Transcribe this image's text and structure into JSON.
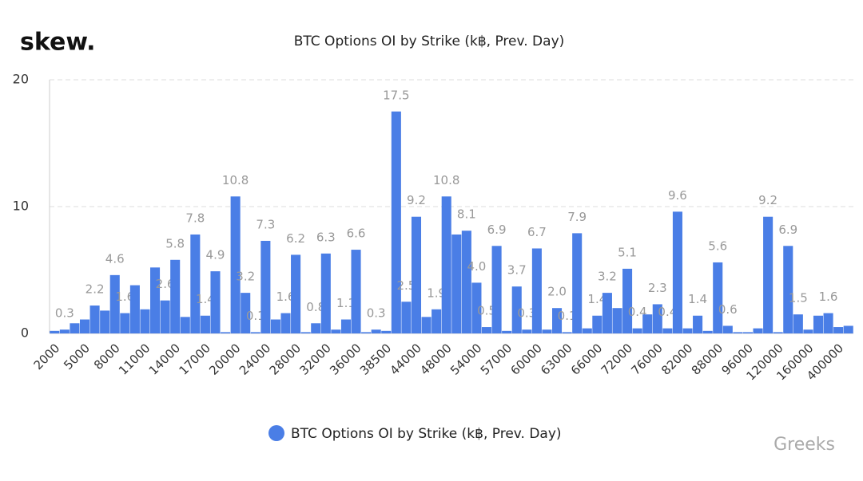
{
  "logo": "skew.",
  "watermark": "Greeks",
  "chart_data": {
    "type": "bar",
    "title": "BTC Options OI by Strike (k฿, Prev. Day)",
    "categories": [
      "2000",
      null,
      null,
      "5000",
      null,
      null,
      "8000",
      null,
      null,
      "11000",
      null,
      null,
      "14000",
      null,
      null,
      "17000",
      null,
      null,
      "20000",
      null,
      null,
      "24000",
      null,
      null,
      "28000",
      null,
      null,
      "32000",
      null,
      null,
      "36000",
      null,
      null,
      "38500",
      null,
      null,
      "44000",
      null,
      null,
      "48000",
      null,
      null,
      "54000",
      null,
      null,
      "57000",
      null,
      null,
      "60000",
      null,
      null,
      "63000",
      null,
      null,
      "66000",
      null,
      null,
      "72000",
      null,
      null,
      "76000",
      null,
      null,
      "82000",
      null,
      null,
      "88000",
      null,
      null,
      "96000",
      null,
      null,
      "120000",
      null,
      null,
      "160000",
      null,
      null,
      "400000",
      null
    ],
    "series": [
      {
        "name": "BTC Options OI by Strike (k฿, Prev. Day)",
        "color": "#4a7ee6",
        "values": [
          0.2,
          0.3,
          0.8,
          1.1,
          2.2,
          1.8,
          4.6,
          1.6,
          3.8,
          1.9,
          5.2,
          2.6,
          5.8,
          1.3,
          7.8,
          1.4,
          4.9,
          0.1,
          10.8,
          3.2,
          0.1,
          7.3,
          1.1,
          1.6,
          6.2,
          0.1,
          0.8,
          6.3,
          0.3,
          1.1,
          6.6,
          0.1,
          0.3,
          0.2,
          17.5,
          2.5,
          9.2,
          1.3,
          1.9,
          10.8,
          7.8,
          8.1,
          4.0,
          0.5,
          6.9,
          0.2,
          3.7,
          0.3,
          6.7,
          0.3,
          2.0,
          0.1,
          7.9,
          0.4,
          1.4,
          3.2,
          2.0,
          5.1,
          0.4,
          1.5,
          2.3,
          0.4,
          9.6,
          0.4,
          1.4,
          0.2,
          5.6,
          0.6,
          0.1,
          0.1,
          0.4,
          9.2,
          0.1,
          6.9,
          1.5,
          0.3,
          1.4,
          1.6,
          0.5,
          0.6
        ],
        "value_labels": [
          null,
          "0.3",
          null,
          null,
          "2.2",
          null,
          "4.6",
          "1.6",
          null,
          null,
          null,
          "2.6",
          "5.8",
          null,
          "7.8",
          "1.4",
          "4.9",
          null,
          "10.8",
          "3.2",
          "0.1",
          "7.3",
          null,
          "1.6",
          "6.2",
          null,
          "0.8",
          "6.3",
          null,
          "1.1",
          "6.6",
          null,
          "0.3",
          null,
          "17.5",
          "2.5",
          "9.2",
          null,
          "1.9",
          "10.8",
          null,
          "8.1",
          "4.0",
          "0.5",
          "6.9",
          null,
          "3.7",
          "0.3",
          "6.7",
          null,
          "2.0",
          "0.1",
          "7.9",
          null,
          "1.4",
          "3.2",
          null,
          "5.1",
          "0.4",
          null,
          "2.3",
          "0.4",
          "9.6",
          null,
          "1.4",
          null,
          "5.6",
          "0.6",
          null,
          null,
          null,
          "9.2",
          null,
          "6.9",
          "1.5",
          null,
          null,
          "1.6",
          null,
          null
        ]
      }
    ],
    "ylim": [
      0,
      20
    ],
    "yticks": [
      0,
      10,
      20
    ],
    "grid": true,
    "legend": "bottom"
  }
}
